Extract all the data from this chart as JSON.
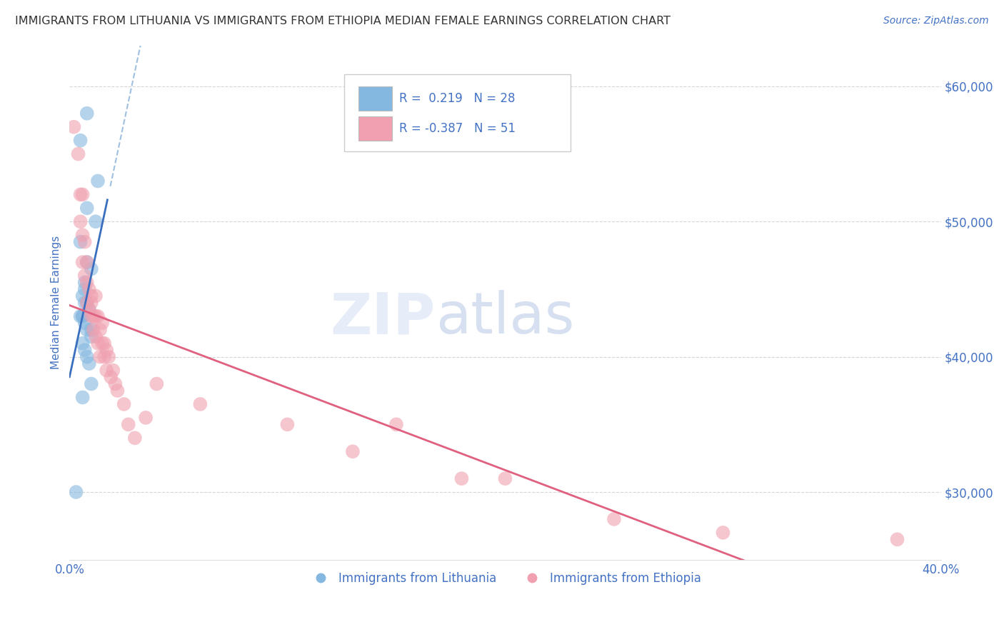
{
  "title": "IMMIGRANTS FROM LITHUANIA VS IMMIGRANTS FROM ETHIOPIA MEDIAN FEMALE EARNINGS CORRELATION CHART",
  "source": "Source: ZipAtlas.com",
  "ylabel": "Median Female Earnings",
  "watermark": "ZIPatlas",
  "series": [
    {
      "name": "Immigrants from Lithuania",
      "color": "#85b8e0",
      "trend_color": "#3a6fbf",
      "trend_style": "-",
      "R": 0.219,
      "N": 28,
      "x": [
        0.008,
        0.005,
        0.013,
        0.008,
        0.012,
        0.005,
        0.008,
        0.01,
        0.007,
        0.007,
        0.006,
        0.007,
        0.008,
        0.009,
        0.006,
        0.005,
        0.006,
        0.007,
        0.008,
        0.01,
        0.01,
        0.006,
        0.007,
        0.008,
        0.009,
        0.01,
        0.006,
        0.003
      ],
      "y": [
        58000,
        56000,
        53000,
        51000,
        50000,
        48500,
        47000,
        46500,
        45500,
        45000,
        44500,
        44000,
        44000,
        43500,
        43000,
        43000,
        43000,
        42500,
        42000,
        42000,
        41500,
        41000,
        40500,
        40000,
        39500,
        38000,
        37000,
        30000
      ]
    },
    {
      "name": "Immigrants from Ethiopia",
      "color": "#f0a0b0",
      "trend_color": "#e06080",
      "trend_style": "-",
      "R": -0.387,
      "N": 51,
      "x": [
        0.002,
        0.004,
        0.005,
        0.005,
        0.006,
        0.006,
        0.006,
        0.007,
        0.007,
        0.008,
        0.008,
        0.008,
        0.009,
        0.009,
        0.01,
        0.01,
        0.01,
        0.011,
        0.011,
        0.012,
        0.012,
        0.012,
        0.013,
        0.013,
        0.014,
        0.014,
        0.015,
        0.015,
        0.016,
        0.016,
        0.017,
        0.017,
        0.018,
        0.019,
        0.02,
        0.021,
        0.022,
        0.025,
        0.027,
        0.03,
        0.035,
        0.04,
        0.06,
        0.1,
        0.13,
        0.15,
        0.18,
        0.2,
        0.25,
        0.3,
        0.38
      ],
      "y": [
        57000,
        55000,
        52000,
        50000,
        52000,
        49000,
        47000,
        48500,
        46000,
        47000,
        45500,
        44000,
        45000,
        43500,
        44500,
        43000,
        44000,
        43000,
        42000,
        44500,
        43000,
        41500,
        43000,
        41000,
        42000,
        40000,
        42500,
        41000,
        40000,
        41000,
        40500,
        39000,
        40000,
        38500,
        39000,
        38000,
        37500,
        36500,
        35000,
        34000,
        35500,
        38000,
        36500,
        35000,
        33000,
        35000,
        31000,
        31000,
        28000,
        27000,
        26500
      ]
    }
  ],
  "xlim": [
    0.0,
    0.4
  ],
  "ylim": [
    25000,
    63000
  ],
  "yticks": [
    30000,
    40000,
    50000,
    60000
  ],
  "ytick_labels": [
    "$30,000",
    "$40,000",
    "$50,000",
    "$60,000"
  ],
  "xticks": [
    0.0,
    0.05,
    0.1,
    0.15,
    0.2,
    0.25,
    0.3,
    0.35,
    0.4
  ],
  "xtick_labels": [
    "0.0%",
    "",
    "",
    "",
    "",
    "",
    "",
    "",
    "40.0%"
  ],
  "axis_color": "#4472c4",
  "grid_color": "#cccccc",
  "title_color": "#333333",
  "background_color": "#ffffff",
  "legend_box": {
    "R1": 0.219,
    "N1": 28,
    "R2": -0.387,
    "N2": 51,
    "color1": "#85b8e0",
    "color2": "#f0a0b0"
  }
}
